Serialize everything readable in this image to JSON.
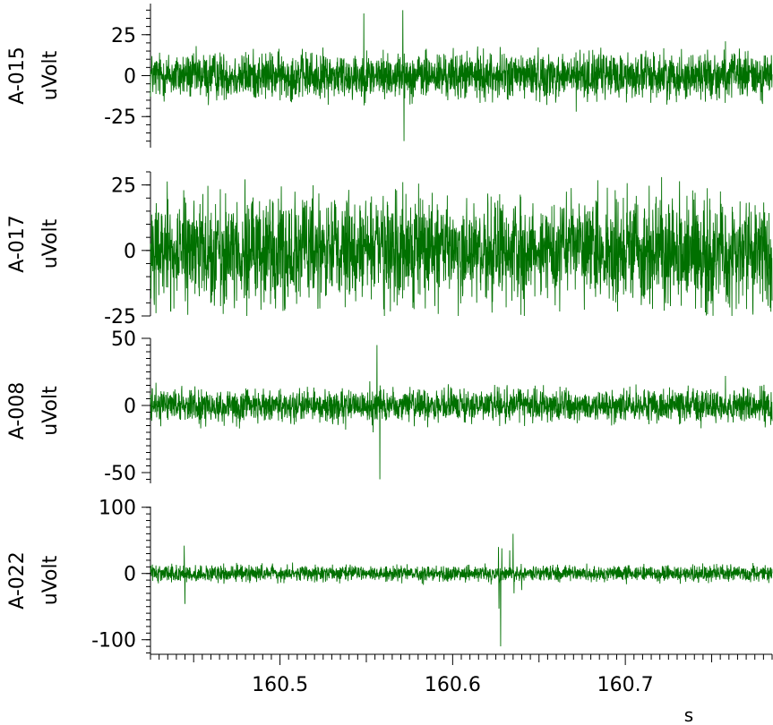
{
  "chart_data": {
    "type": "line",
    "line_color": "#007000",
    "background": "#ffffff",
    "x_axis": {
      "range": [
        160.425,
        160.785
      ],
      "ticks": [
        160.5,
        160.6,
        160.7
      ],
      "tick_labels": [
        "160.5",
        "160.6",
        "160.7"
      ],
      "unit": "s"
    },
    "channels": [
      {
        "name": "A-015",
        "unit": "uVolt",
        "ylim": [
          -44,
          44
        ],
        "yticks": [
          25,
          0,
          -25
        ],
        "ytick_labels": [
          "25",
          "0",
          "-25"
        ],
        "noise_amplitude": 7,
        "events": [
          {
            "t": 160.5185,
            "v": 14
          },
          {
            "t": 160.5196,
            "v": -11
          },
          {
            "t": 160.5485,
            "v": 38
          },
          {
            "t": 160.549,
            "v": -9
          },
          {
            "t": 160.5712,
            "v": 40
          },
          {
            "t": 160.5718,
            "v": -40
          },
          {
            "t": 160.5706,
            "v": -8
          },
          {
            "t": 160.4585,
            "v": -18
          },
          {
            "t": 160.6715,
            "v": -22
          },
          {
            "t": 160.758,
            "v": 21
          },
          {
            "t": 160.76,
            "v": -12
          }
        ]
      },
      {
        "name": "A-017",
        "unit": "uVolt",
        "ylim": [
          -25,
          30
        ],
        "yticks": [
          25,
          0,
          -25
        ],
        "ytick_labels": [
          "25",
          "0",
          "-25"
        ],
        "noise_amplitude": 10,
        "events": [
          {
            "t": 160.6465,
            "v": 18
          },
          {
            "t": 160.651,
            "v": -17
          },
          {
            "t": 160.721,
            "v": 28
          },
          {
            "t": 160.7225,
            "v": -23
          },
          {
            "t": 160.492,
            "v": 17
          }
        ]
      },
      {
        "name": "A-008",
        "unit": "uVolt",
        "ylim": [
          -58,
          50
        ],
        "yticks": [
          50,
          0,
          -50
        ],
        "ytick_labels": [
          "50",
          "0",
          "-50"
        ],
        "noise_amplitude": 6,
        "events": [
          {
            "t": 160.5562,
            "v": 45
          },
          {
            "t": 160.5578,
            "v": -55
          },
          {
            "t": 160.554,
            "v": -20
          },
          {
            "t": 160.552,
            "v": 18
          },
          {
            "t": 160.538,
            "v": -18
          },
          {
            "t": 160.758,
            "v": 22
          }
        ]
      },
      {
        "name": "A-022",
        "unit": "uVolt",
        "ylim": [
          -122,
          101
        ],
        "yticks": [
          100,
          0,
          -100
        ],
        "ytick_labels": [
          "100",
          "0",
          "-100"
        ],
        "noise_amplitude": 6,
        "events": [
          {
            "t": 160.4445,
            "v": 42
          },
          {
            "t": 160.445,
            "v": -46
          },
          {
            "t": 160.6265,
            "v": 40
          },
          {
            "t": 160.6268,
            "v": -53
          },
          {
            "t": 160.6278,
            "v": -110
          },
          {
            "t": 160.6285,
            "v": 38
          },
          {
            "t": 160.633,
            "v": 35
          },
          {
            "t": 160.635,
            "v": 60
          },
          {
            "t": 160.6355,
            "v": -30
          },
          {
            "t": 160.64,
            "v": -25
          }
        ]
      }
    ]
  }
}
